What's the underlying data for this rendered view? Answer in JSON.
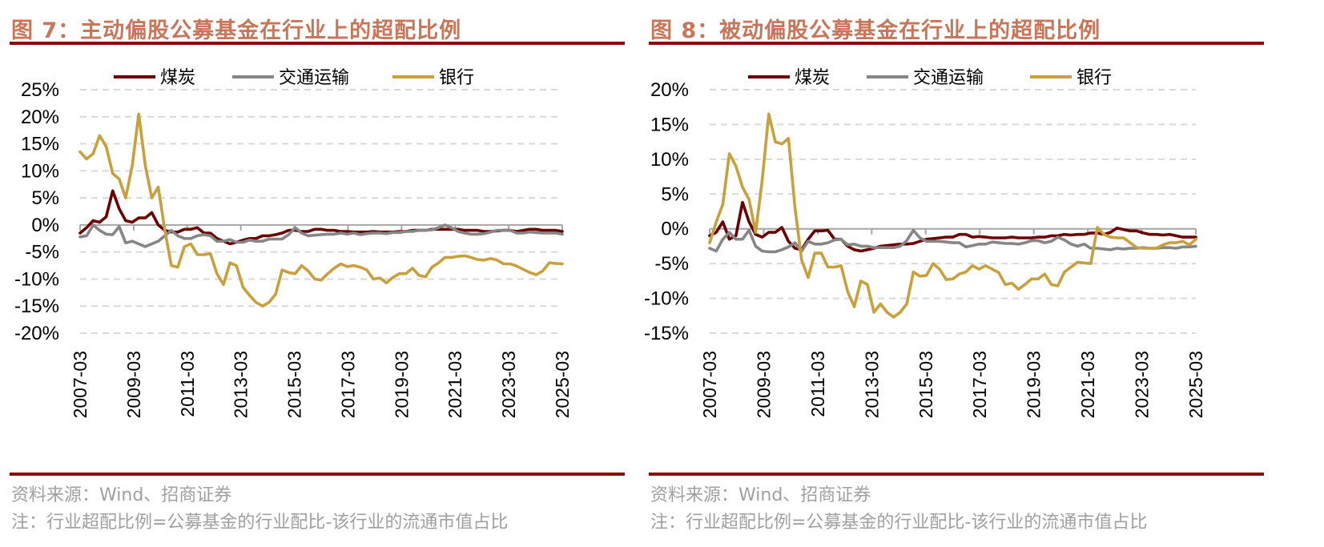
{
  "colors": {
    "title": "#c8765a",
    "rule": "#8b0a0a",
    "coal": "#6b0000",
    "transport": "#868686",
    "bank": "#c8a03c",
    "grid": "#d9d9d9",
    "axis": "#a6a6a6",
    "source": "#a0a0a0"
  },
  "figures": [
    {
      "title": "图 7：主动偏股公募基金在行业上的超配比例",
      "source": "资料来源：Wind、招商证券",
      "note": "注：行业超配比例=公募基金的行业配比-该行业的流通市值占比"
    },
    {
      "title": "图 8：被动偏股公募基金在行业上的超配比例",
      "source": "资料来源：Wind、招商证券",
      "note": "注：行业超配比例=公募基金的行业配比-该行业的流通市值占比"
    }
  ],
  "chart_data": [
    {
      "type": "line",
      "title": "图 7：主动偏股公募基金在行业上的超配比例",
      "xlabel": "",
      "ylabel": "",
      "ylim": [
        -20,
        25
      ],
      "yticks": [
        "25%",
        "20%",
        "15%",
        "10%",
        "5%",
        "0%",
        "-5%",
        "-10%",
        "-15%",
        "-20%"
      ],
      "ytick_values": [
        25,
        20,
        15,
        10,
        5,
        0,
        -5,
        -10,
        -15,
        -20
      ],
      "xticks": [
        "2007-03",
        "2009-03",
        "2011-03",
        "2013-03",
        "2015-03",
        "2017-03",
        "2019-03",
        "2021-03",
        "2023-03",
        "2025-03"
      ],
      "x_range": [
        "2007-03",
        "2025-03"
      ],
      "frequency": "quarterly",
      "grid": true,
      "legend": "top",
      "series": [
        {
          "name": "煤炭",
          "color": "#6b0000",
          "values": [
            -1.5,
            -0.5,
            0.8,
            0.5,
            1.5,
            6.3,
            3,
            0.8,
            0.5,
            1.3,
            1.3,
            2.3,
            0,
            -1,
            -1.3,
            -1.3,
            -0.8,
            -0.8,
            -0.5,
            -1.5,
            -1.5,
            -2.5,
            -3,
            -3.5,
            -3.2,
            -2.8,
            -2.5,
            -2.5,
            -2,
            -2,
            -1.8,
            -1.5,
            -1,
            -1,
            -1.2,
            -1.2,
            -0.8,
            -0.8,
            -1,
            -1,
            -1.2,
            -1.2,
            -1.3,
            -1.3,
            -1.3,
            -1.2,
            -1.3,
            -1.3,
            -1.3,
            -1.2,
            -1.2,
            -1,
            -1,
            -1,
            -0.8,
            -0.8,
            -0.8,
            -0.8,
            -0.8,
            -1,
            -1,
            -1,
            -1.2,
            -1.2,
            -1.1,
            -1,
            -1,
            -1.2,
            -1,
            -0.8,
            -0.8,
            -1,
            -1,
            -1,
            -1.2
          ]
        },
        {
          "name": "交通运输",
          "color": "#868686",
          "values": [
            -2.2,
            -2,
            0,
            -1,
            -1.7,
            -1.8,
            -0.3,
            -3.3,
            -3,
            -3.5,
            -4,
            -3.5,
            -3,
            -2,
            -1,
            -2,
            -2.5,
            -2.5,
            -2,
            -1.8,
            -2,
            -3,
            -3,
            -2.7,
            -3.2,
            -3.2,
            -2.8,
            -3,
            -3,
            -2.6,
            -2.6,
            -2.6,
            -1.8,
            -0.5,
            -1.5,
            -2,
            -1.9,
            -1.8,
            -1.7,
            -1.7,
            -1.5,
            -1.7,
            -1.5,
            -1.8,
            -1.6,
            -1.5,
            -1.5,
            -1.6,
            -1.4,
            -1.4,
            -1.2,
            -1.2,
            -1,
            -1,
            -0.9,
            -0.5,
            0,
            -0.5,
            -1.2,
            -1.5,
            -1.7,
            -1.7,
            -1.6,
            -1.3,
            -1,
            -1,
            -1,
            -1.5,
            -1.5,
            -1.3,
            -1.4,
            -1.5,
            -1.5,
            -1.5,
            -1.7
          ]
        },
        {
          "name": "银行",
          "color": "#c8a03c",
          "values": [
            13.5,
            12.2,
            13.2,
            16.5,
            14.5,
            9.5,
            8.5,
            5,
            11,
            20.5,
            11,
            5,
            7,
            -1,
            -7.5,
            -7.8,
            -4,
            -3.5,
            -5.5,
            -5.5,
            -5.3,
            -9,
            -11,
            -7,
            -7.5,
            -11.5,
            -13,
            -14.3,
            -15,
            -14.3,
            -12.8,
            -8.3,
            -8.8,
            -9,
            -7.5,
            -8.5,
            -10,
            -10.2,
            -9,
            -8,
            -7.2,
            -7.7,
            -7.5,
            -7.8,
            -8.3,
            -10,
            -9.8,
            -10.7,
            -9.7,
            -9,
            -9,
            -8,
            -9.3,
            -9.6,
            -7.8,
            -7,
            -6,
            -6,
            -5.8,
            -5.7,
            -6,
            -6.4,
            -6.5,
            -6.2,
            -6.5,
            -7.2,
            -7.2,
            -7.6,
            -8.2,
            -8.8,
            -9.2,
            -8.5,
            -7,
            -7.1,
            -7.2
          ]
        }
      ]
    },
    {
      "type": "line",
      "title": "图 8：被动偏股公募基金在行业上的超配比例",
      "xlabel": "",
      "ylabel": "",
      "ylim": [
        -15,
        20
      ],
      "yticks": [
        "20%",
        "15%",
        "10%",
        "5%",
        "0%",
        "-5%",
        "-10%",
        "-15%"
      ],
      "ytick_values": [
        20,
        15,
        10,
        5,
        0,
        -5,
        -10,
        -15
      ],
      "xticks": [
        "2007-03",
        "2009-03",
        "2011-03",
        "2013-03",
        "2015-03",
        "2017-03",
        "2019-03",
        "2021-03",
        "2023-03",
        "2025-03"
      ],
      "x_range": [
        "2007-03",
        "2025-03"
      ],
      "frequency": "quarterly",
      "grid": true,
      "legend": "top",
      "series": [
        {
          "name": "煤炭",
          "color": "#6b0000",
          "values": [
            -1,
            -0.5,
            1,
            -1.5,
            -1,
            3.8,
            1,
            -0.8,
            -1.2,
            -0.5,
            -0.5,
            0.2,
            -1.8,
            -2.8,
            -3,
            -1.5,
            -0.3,
            -0.3,
            -0.2,
            -1.5,
            -1.5,
            -2.5,
            -3,
            -3.2,
            -3,
            -2.8,
            -2.5,
            -2.4,
            -2.3,
            -2.2,
            -2.2,
            -2.1,
            -1.8,
            -1.5,
            -1.4,
            -1.3,
            -1.2,
            -1.2,
            -0.8,
            -0.8,
            -1.2,
            -1.1,
            -1.2,
            -1.3,
            -1.3,
            -1.3,
            -1.2,
            -1.3,
            -1.3,
            -1.3,
            -1.2,
            -1.2,
            -1,
            -1,
            -0.8,
            -0.9,
            -0.8,
            -0.8,
            -0.6,
            -0.6,
            -0.8,
            -0.5,
            0.1,
            -0.1,
            -0.3,
            -0.3,
            -0.6,
            -0.8,
            -0.8,
            -0.9,
            -0.8,
            -1,
            -1.2,
            -1.2,
            -1.2
          ]
        },
        {
          "name": "交通运输",
          "color": "#868686",
          "values": [
            -2.8,
            -3.2,
            -1.5,
            -0.5,
            -1.5,
            -1.5,
            -0.2,
            -2.5,
            -3.2,
            -3.3,
            -3.3,
            -3,
            -2.6,
            -2,
            -3.2,
            -1.8,
            -2.2,
            -2.2,
            -2,
            -1.6,
            -1.5,
            -2.3,
            -2.2,
            -2.5,
            -2.5,
            -2.7,
            -2.7,
            -2.7,
            -2.7,
            -2.5,
            -1.7,
            -0.2,
            -1.3,
            -1.8,
            -1.8,
            -1.8,
            -1.9,
            -2,
            -2,
            -2.6,
            -2.4,
            -2.2,
            -2.2,
            -1.9,
            -2,
            -2.1,
            -2.1,
            -2.2,
            -2,
            -1.7,
            -1.7,
            -2,
            -1.8,
            -1.2,
            -1.6,
            -2.2,
            -2.5,
            -2.2,
            -2.8,
            -2.8,
            -2.9,
            -3,
            -2.8,
            -2.9,
            -2.8,
            -2.8,
            -2.7,
            -2.8,
            -2.8,
            -2.7,
            -2.7,
            -2.8,
            -2.6,
            -2.6,
            -2.5
          ]
        },
        {
          "name": "银行",
          "color": "#c8a03c",
          "values": [
            -2,
            1,
            3.5,
            10.8,
            9,
            6,
            4.2,
            -0.5,
            7,
            16.5,
            12.5,
            12.2,
            13,
            3,
            -4.5,
            -7,
            -3.5,
            -3.5,
            -5.5,
            -5.5,
            -5.3,
            -9,
            -11.2,
            -7.5,
            -8,
            -12,
            -10.8,
            -12,
            -12.7,
            -12,
            -10.8,
            -6.2,
            -6.8,
            -6.7,
            -5,
            -5.8,
            -7.3,
            -7.2,
            -6.5,
            -6.2,
            -5.3,
            -5.8,
            -5.3,
            -5.8,
            -6.3,
            -8,
            -7.8,
            -8.7,
            -8,
            -7.2,
            -7.2,
            -6.5,
            -8,
            -8.2,
            -6.2,
            -5.5,
            -4.8,
            -4.9,
            -5,
            0.2,
            -0.8,
            -1.2,
            -1.3,
            -1.3,
            -2,
            -2.7,
            -2.8,
            -2.8,
            -2.8,
            -2.3,
            -2,
            -2,
            -1.8,
            -2.3,
            -1.5
          ]
        }
      ]
    }
  ]
}
